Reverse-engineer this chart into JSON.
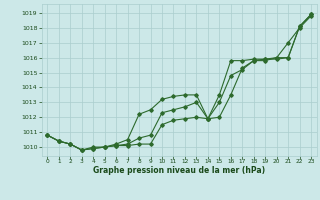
{
  "xlabel": "Graphe pression niveau de la mer (hPa)",
  "x": [
    0,
    1,
    2,
    3,
    4,
    5,
    6,
    7,
    8,
    9,
    10,
    11,
    12,
    13,
    14,
    15,
    16,
    17,
    18,
    19,
    20,
    21,
    22,
    23
  ],
  "line1": [
    1010.8,
    1010.4,
    1010.2,
    1009.8,
    1009.9,
    1010.0,
    1010.1,
    1010.1,
    1010.2,
    1010.2,
    1011.5,
    1011.8,
    1011.9,
    1012.0,
    1011.9,
    1012.0,
    1013.5,
    1015.3,
    1015.8,
    1015.8,
    1016.0,
    1017.0,
    1018.0,
    1018.8
  ],
  "line2": [
    1010.8,
    1010.4,
    1010.2,
    1009.8,
    1009.9,
    1010.0,
    1010.1,
    1010.2,
    1010.6,
    1010.8,
    1012.3,
    1012.5,
    1012.7,
    1013.0,
    1011.9,
    1013.0,
    1014.8,
    1015.2,
    1015.8,
    1015.9,
    1015.9,
    1016.0,
    1018.1,
    1018.9
  ],
  "line3": [
    1010.8,
    1010.4,
    1010.2,
    1009.8,
    1010.0,
    1010.0,
    1010.2,
    1010.5,
    1012.2,
    1012.5,
    1013.2,
    1013.4,
    1013.5,
    1013.5,
    1011.9,
    1013.5,
    1015.8,
    1015.8,
    1015.9,
    1015.9,
    1016.0,
    1016.0,
    1018.1,
    1018.9
  ],
  "line_color": "#2d6a2d",
  "bg_color": "#cce8e8",
  "grid_color": "#aacece",
  "text_color": "#1a4a1a",
  "ylim_min": 1009.4,
  "ylim_max": 1019.6,
  "yticks": [
    1010,
    1011,
    1012,
    1013,
    1014,
    1015,
    1016,
    1017,
    1018,
    1019
  ]
}
